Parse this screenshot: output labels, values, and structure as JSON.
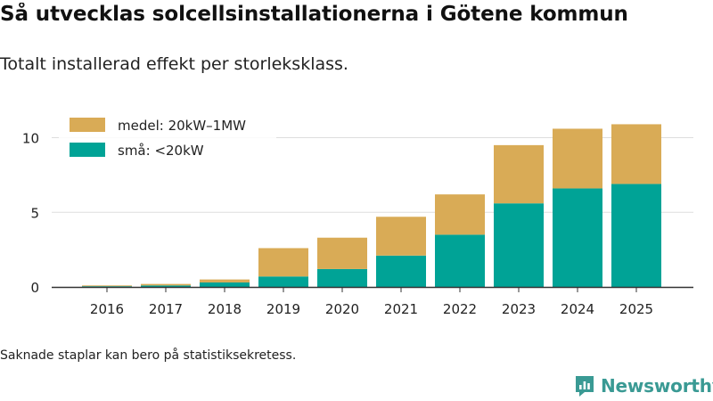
{
  "header": {
    "title": "Så utvecklas solcellsinstallationerna i Götene kommun",
    "subtitle": "Totalt installerad effekt per storleksklass."
  },
  "footer": {
    "note": "Saknade staplar kan bero på statistiksekretess.",
    "brand": "Newsworthy"
  },
  "colors": {
    "medel": "#d9ab56",
    "sma": "#00a396",
    "grid": "#dddddd",
    "axis": "#333333"
  },
  "chart_data": {
    "type": "bar",
    "stacked": true,
    "categories": [
      "2016",
      "2017",
      "2018",
      "2019",
      "2020",
      "2021",
      "2022",
      "2023",
      "2024",
      "2025"
    ],
    "series": [
      {
        "name": "små: <20kW",
        "color": "#00a396",
        "values": [
          0.05,
          0.1,
          0.3,
          0.7,
          1.2,
          2.1,
          3.5,
          5.6,
          6.6,
          6.9
        ]
      },
      {
        "name": "medel: 20kW–1MW",
        "color": "#d9ab56",
        "values": [
          0.05,
          0.1,
          0.2,
          1.9,
          2.1,
          2.6,
          2.7,
          3.9,
          4.0,
          4.0
        ]
      }
    ],
    "legend": [
      "medel: 20kW–1MW",
      "små: <20kW"
    ],
    "yticks": [
      "0",
      "5",
      "10"
    ],
    "ylim": [
      0,
      11.5
    ],
    "grid": true,
    "legend_position": "top-left"
  }
}
